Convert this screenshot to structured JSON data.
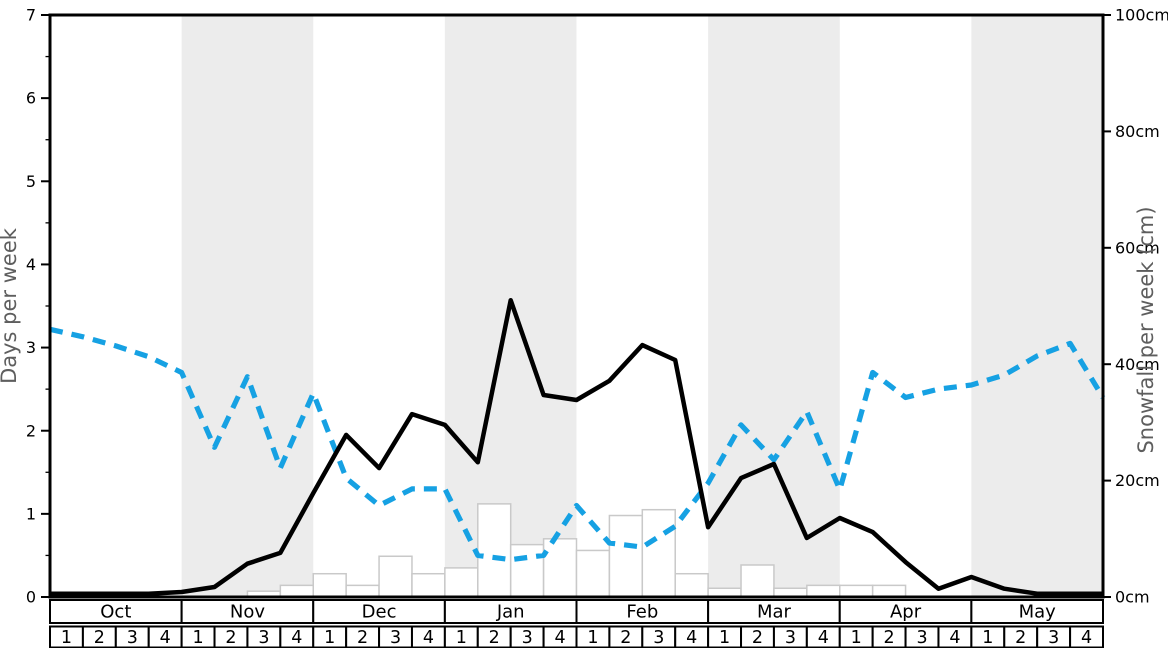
{
  "chart": {
    "left_axis": {
      "label": "Days per week",
      "min": 0,
      "max": 7,
      "tick_labels": [
        "0",
        "1",
        "2",
        "3",
        "4",
        "5",
        "6",
        "7"
      ],
      "minor_tick_step": 0.5
    },
    "right_axis": {
      "label": "Snowfall per week (cm)",
      "min": 0,
      "max": 100,
      "tick_labels": [
        "0cm",
        "20cm",
        "40cm",
        "60cm",
        "80cm",
        "100cm"
      ]
    },
    "months": [
      "Oct",
      "Nov",
      "Dec",
      "Jan",
      "Feb",
      "Mar",
      "Apr",
      "May"
    ],
    "weeks": [
      "1",
      "2",
      "3",
      "4"
    ],
    "colors": {
      "band": "#ececec",
      "bar_fill": "#ffffff",
      "bar_border": "#c9c9c9",
      "solid_line": "#000000",
      "dashed_line": "#16a1e3",
      "axis_label": "#5e5e5e"
    }
  },
  "chart_data": {
    "type": "line",
    "x_description": "32 weeks, Oct week1 through May week4 (4 weeks per month), 33 line points at week boundaries",
    "categories_months": [
      "Oct",
      "Nov",
      "Dec",
      "Jan",
      "Feb",
      "Mar",
      "Apr",
      "May"
    ],
    "weeks_per_month": [
      "1",
      "2",
      "3",
      "4"
    ],
    "left_ylim": [
      0,
      7
    ],
    "right_ylim": [
      0,
      100
    ],
    "grid": false,
    "legend": "none",
    "series": [
      {
        "name": "solid-black-line",
        "axis": "left",
        "unit": "days per week",
        "style": "solid",
        "color": "#000000",
        "values": [
          0.04,
          0.04,
          0.04,
          0.04,
          0.06,
          0.12,
          0.4,
          0.53,
          1.25,
          1.95,
          1.55,
          2.2,
          2.07,
          1.62,
          3.57,
          2.43,
          2.37,
          2.6,
          3.03,
          2.85,
          0.84,
          1.43,
          1.6,
          0.71,
          0.95,
          0.78,
          0.42,
          0.1,
          0.24,
          0.1,
          0.04,
          0.04,
          0.04
        ]
      },
      {
        "name": "dashed-blue-line",
        "axis": "left",
        "unit": "days per week",
        "style": "dashed",
        "color": "#16a1e3",
        "values": [
          3.22,
          3.13,
          3.02,
          2.89,
          2.7,
          1.8,
          2.65,
          1.55,
          2.45,
          1.43,
          1.1,
          1.3,
          1.3,
          0.5,
          0.45,
          0.5,
          1.1,
          0.65,
          0.6,
          0.85,
          1.37,
          2.07,
          1.65,
          2.23,
          1.29,
          2.7,
          2.4,
          2.5,
          2.55,
          2.67,
          2.9,
          3.05,
          2.4
        ]
      }
    ],
    "bars": {
      "name": "weekly-snowfall-bars",
      "axis": "right",
      "unit": "cm",
      "values": [
        0,
        0,
        0,
        0,
        0,
        0,
        1,
        2,
        4,
        2,
        7,
        4,
        5,
        16,
        9,
        10,
        8,
        14,
        15,
        4,
        1.5,
        5.5,
        1.5,
        2,
        2,
        2,
        0,
        0,
        0,
        0,
        0,
        0
      ]
    }
  }
}
